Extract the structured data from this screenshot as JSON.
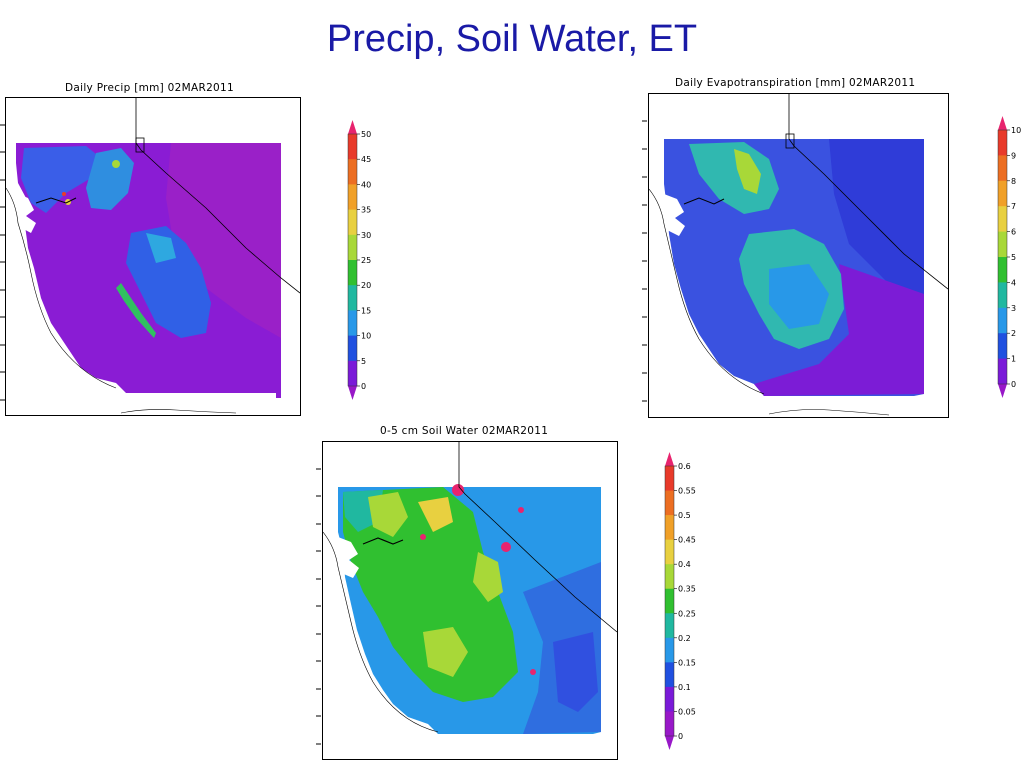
{
  "slide": {
    "title": "Precip, Soil Water, ET"
  },
  "panels": {
    "precip": {
      "title": "Daily Precip [mm]   02MAR2011",
      "colorbar": {
        "labels": [
          "50",
          "45",
          "40",
          "35",
          "30",
          "25",
          "20",
          "15",
          "10",
          "5",
          "0"
        ],
        "colors": [
          "#e8246e",
          "#e83a2a",
          "#ec6e22",
          "#f0a028",
          "#e8d040",
          "#a8d838",
          "#30c030",
          "#20b8a0",
          "#2898e8",
          "#2050e0",
          "#7a1ad8",
          "#9818c8"
        ]
      }
    },
    "et": {
      "title": "Daily Evapotranspiration [mm]   02MAR2011",
      "colorbar": {
        "labels": [
          "10",
          "9",
          "8",
          "7",
          "6",
          "5",
          "4",
          "3",
          "2",
          "1",
          "0"
        ],
        "colors": [
          "#e8246e",
          "#e83a2a",
          "#ec6e22",
          "#f0a028",
          "#e8d040",
          "#a8d838",
          "#30c030",
          "#20b8a0",
          "#2898e8",
          "#2050e0",
          "#7a1ad8",
          "#9818c8"
        ]
      }
    },
    "soil": {
      "title": "0-5 cm Soil Water   02MAR2011",
      "colorbar": {
        "labels": [
          "0.6",
          "0.55",
          "0.5",
          "0.45",
          "0.4",
          "0.35",
          "0.25",
          "0.2",
          "0.15",
          "0.1",
          "0.05",
          "0"
        ],
        "colors": [
          "#e8246e",
          "#e83a2a",
          "#ec6e22",
          "#f0a028",
          "#e8d040",
          "#a8d838",
          "#30c030",
          "#20b8a0",
          "#2898e8",
          "#2050e0",
          "#7a1ad8",
          "#9818c8",
          "#9818c8"
        ]
      }
    }
  }
}
